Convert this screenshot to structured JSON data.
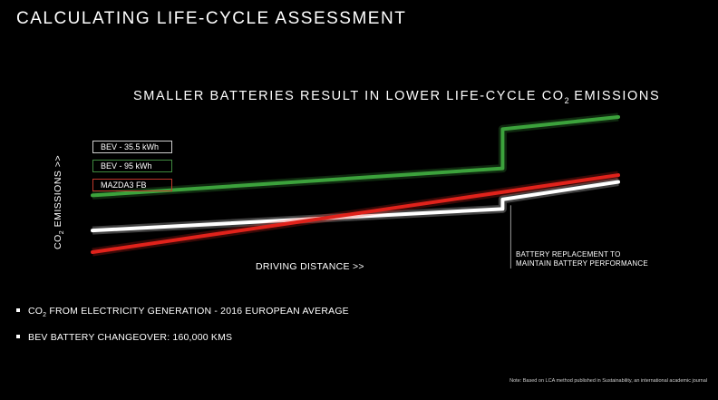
{
  "slide_title": "CALCULATING LIFE-CYCLE ASSESSMENT",
  "bullets": [
    {
      "pre": "CO",
      "sub": "2",
      "post": " FROM ELECTRICITY GENERATION - 2016 EUROPEAN AVERAGE"
    },
    {
      "pre": "BEV BATTERY CHANGEOVER: 160,000 KMS",
      "sub": "",
      "post": ""
    }
  ],
  "note": "Note: Based on LCA method published in Sustainability, an international academic journal",
  "chart_data": {
    "type": "line",
    "title": {
      "pre": "SMALLER BATTERIES RESULT IN LOWER LIFE-CYCLE CO",
      "sub": "2",
      "post": " EMISSIONS"
    },
    "xlabel": "DRIVING DISTANCE >>",
    "ylabel": {
      "pre": "CO",
      "sub": "2",
      "post": " EMISSIONS >>"
    },
    "x_range": [
      0,
      100
    ],
    "y_range": [
      0,
      100
    ],
    "axes_visible": false,
    "grid": false,
    "legend_position": "top-left",
    "annotation": {
      "lines": [
        "BATTERY REPLACEMENT TO",
        "MAINTAIN BATTERY PERFORMANCE"
      ],
      "x": 78
    },
    "series": [
      {
        "name": "BEV - 35.5 kWh",
        "color": "#ffffff",
        "x": [
          0,
          78,
          78,
          100
        ],
        "y": [
          16,
          32,
          39,
          52
        ]
      },
      {
        "name": "BEV - 95 kWh",
        "color": "#3ca23c",
        "x": [
          0,
          78,
          78,
          100
        ],
        "y": [
          42,
          62,
          91,
          100
        ]
      },
      {
        "name": "MAZDA3 FB",
        "color": "#e0221b",
        "x": [
          0,
          100
        ],
        "y": [
          0,
          57
        ]
      }
    ]
  }
}
